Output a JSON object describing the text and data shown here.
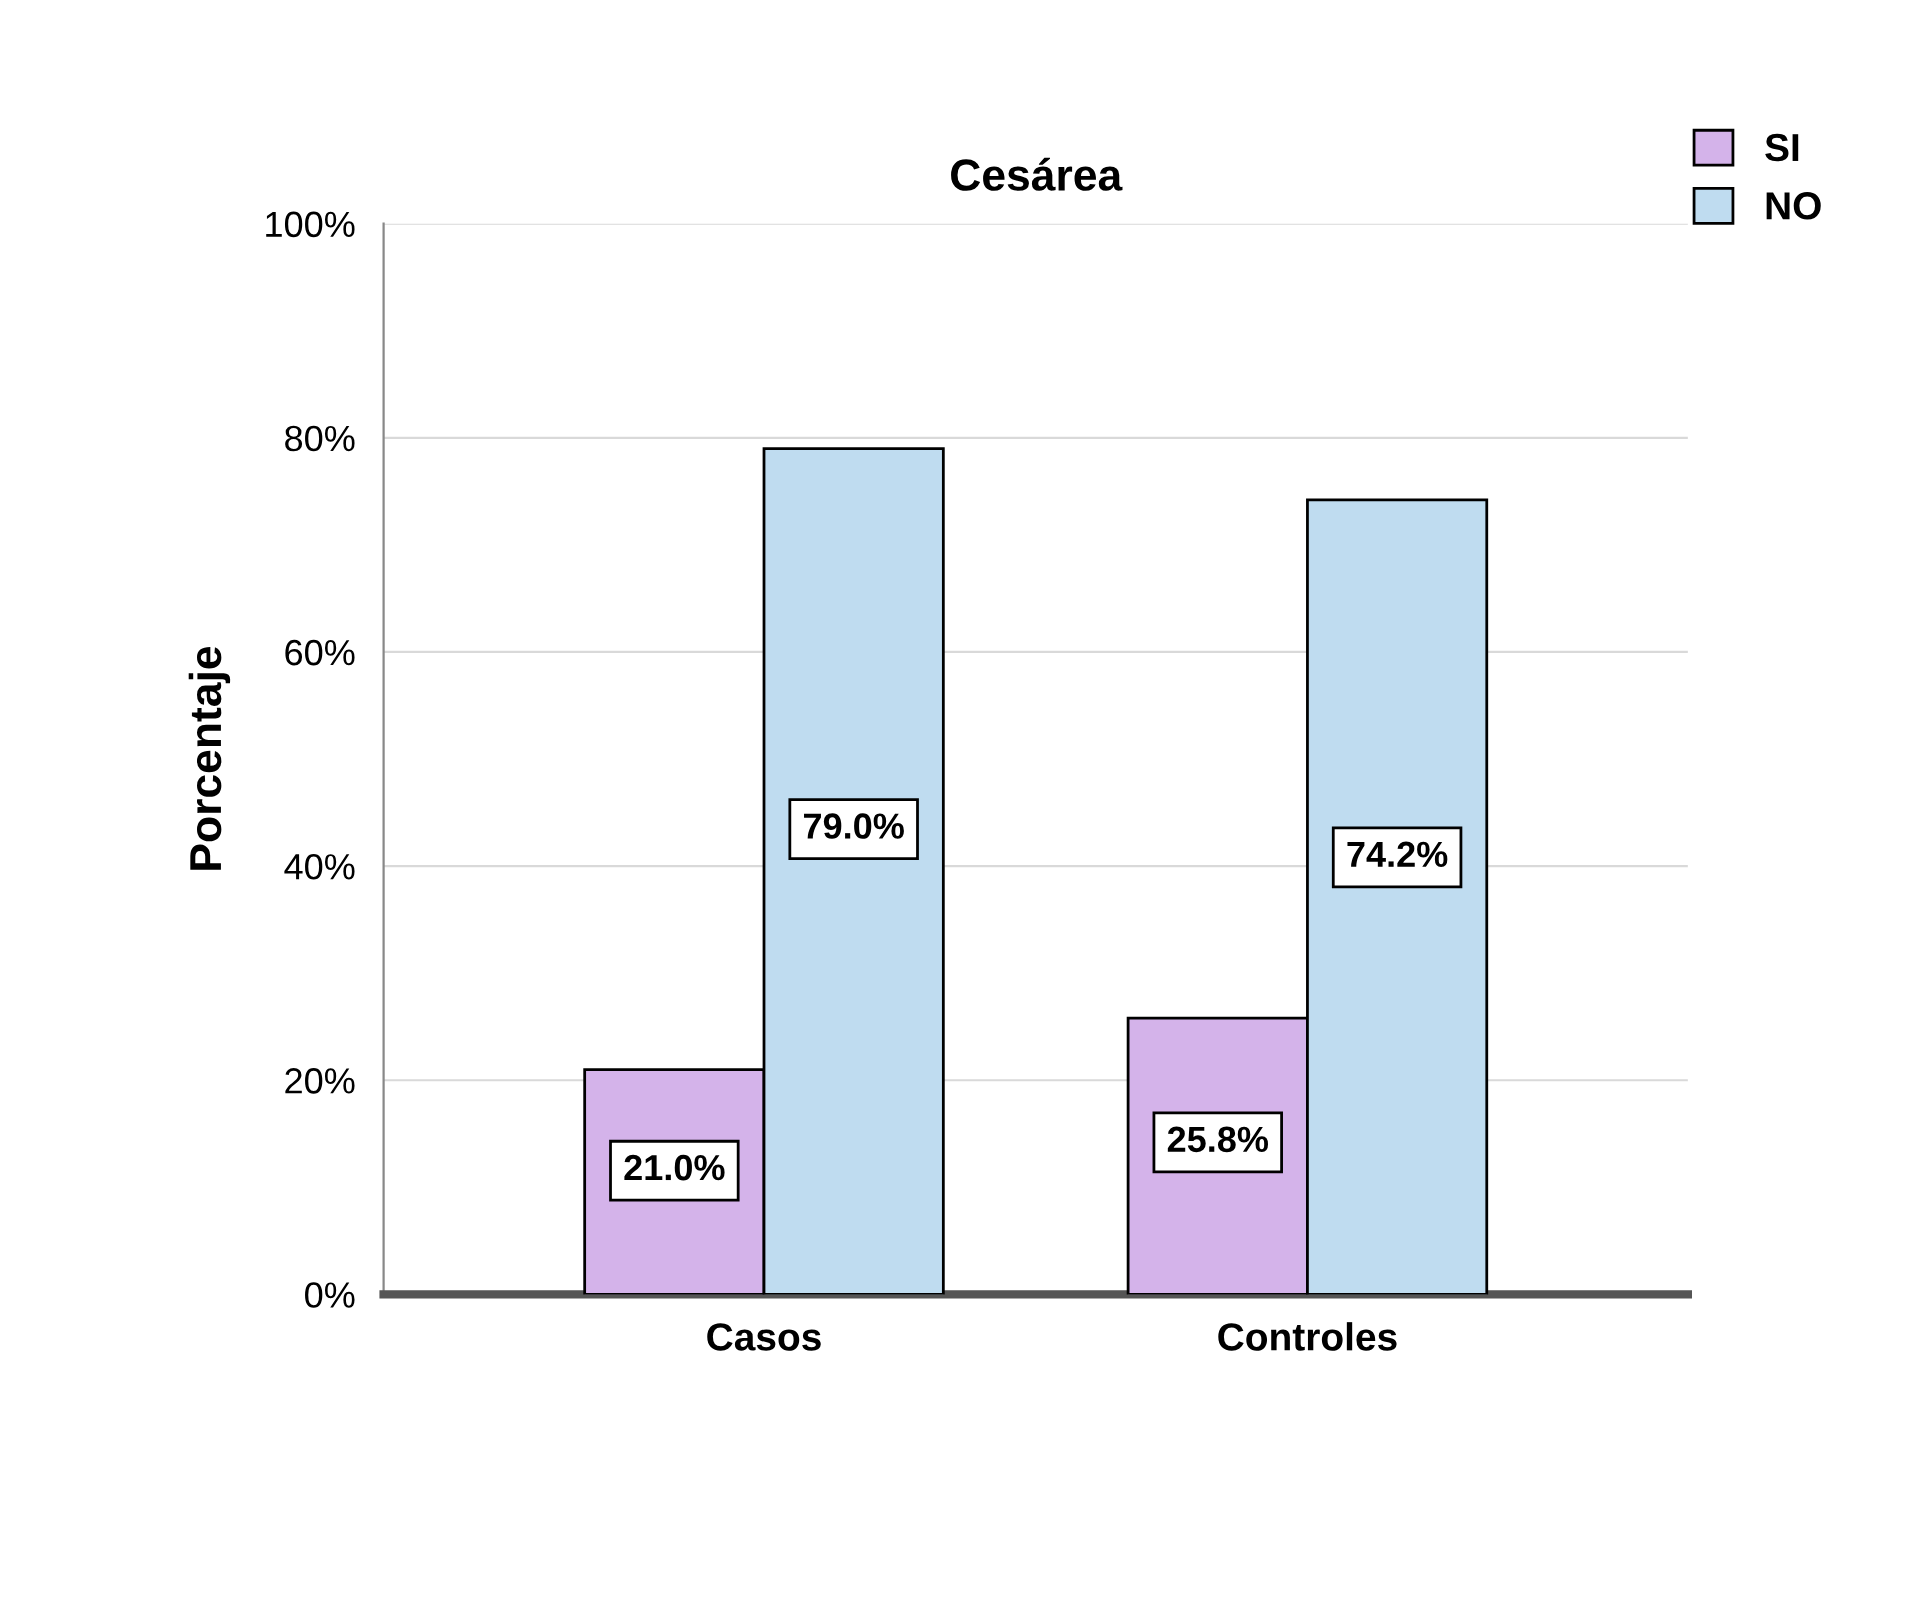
{
  "chart_data": {
    "type": "bar",
    "title": "Cesárea",
    "ylabel": "Porcentaje",
    "categories": [
      "Casos",
      "Controles"
    ],
    "series": [
      {
        "name": "SI",
        "color": "#d4b3ea",
        "values": [
          21.0,
          25.8
        ],
        "value_labels": [
          "21.0%",
          "25.8%"
        ]
      },
      {
        "name": "NO",
        "color": "#bfdcf0",
        "values": [
          79.0,
          74.2
        ],
        "value_labels": [
          "79.0%",
          "74.2%"
        ]
      }
    ],
    "ylim": [
      0,
      100
    ],
    "yticks": [
      {
        "value": 0,
        "label": "0%"
      },
      {
        "value": 20,
        "label": "20%"
      },
      {
        "value": 40,
        "label": "40%"
      },
      {
        "value": 60,
        "label": "60%"
      },
      {
        "value": 80,
        "label": "80%"
      },
      {
        "value": 100,
        "label": "100%"
      }
    ],
    "grid": "y",
    "legend": "top right"
  }
}
